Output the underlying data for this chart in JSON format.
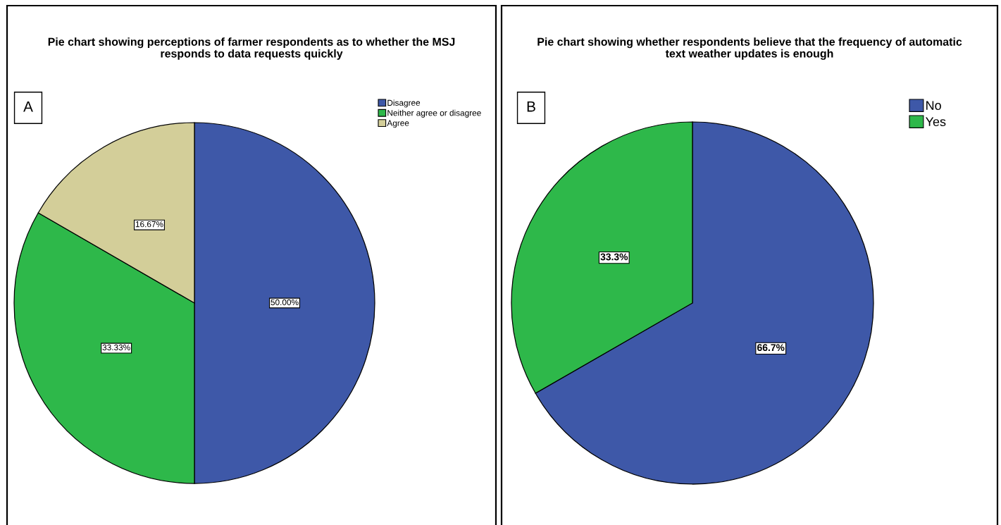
{
  "chart_data": [
    {
      "type": "pie",
      "title": "Pie chart showing perceptions of farmer respondents as to whether the MSJ\nresponds to data requests quickly",
      "categories": [
        "Disagree",
        "Neither agree or disagree",
        "Agree"
      ],
      "values": [
        50.0,
        33.33,
        16.67
      ],
      "colors": [
        "#3e58a8",
        "#2eb84a",
        "#d3ce99"
      ],
      "value_labels": [
        "50.00%",
        "33.33%",
        "16.67%"
      ],
      "legend": "top right",
      "annotations": [
        "A"
      ]
    },
    {
      "type": "pie",
      "title": "Pie chart showing whether respondents believe that the frequency of automatic\ntext weather updates is enough",
      "categories": [
        "No",
        "Yes"
      ],
      "values": [
        66.7,
        33.3
      ],
      "colors": [
        "#3e58a8",
        "#2eb84a"
      ],
      "value_labels": [
        "66.7%",
        "33.3%"
      ],
      "legend": "top right",
      "annotations": [
        "B"
      ]
    }
  ]
}
